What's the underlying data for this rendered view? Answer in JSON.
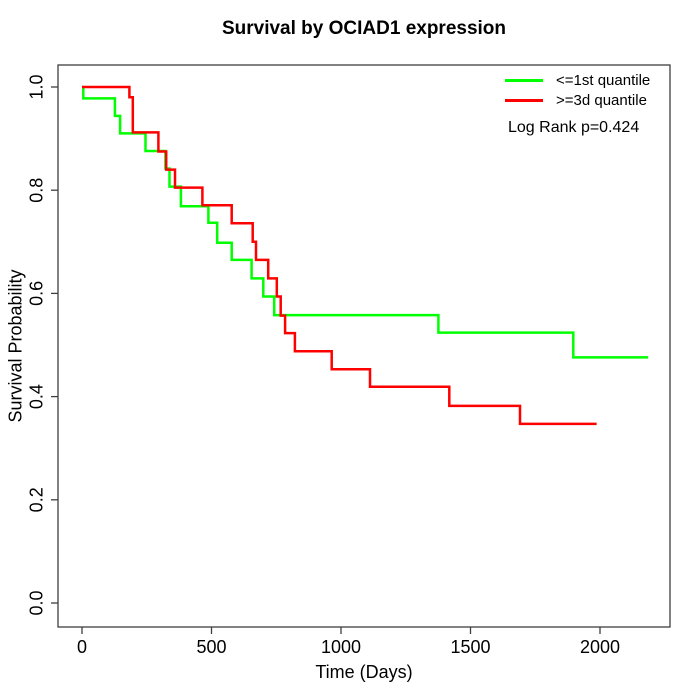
{
  "chart_data": {
    "type": "line",
    "subtype": "kaplan-meier-step",
    "title": "Survival by OCIAD1 expression",
    "xlabel": "Time (Days)",
    "ylabel": "Survival Probability",
    "grid": false,
    "xlim": [
      -91,
      2273
    ],
    "ylim": [
      -0.046,
      1.043
    ],
    "x_ticks": [
      [
        "0",
        0
      ],
      [
        "500",
        500
      ],
      [
        "1000",
        1000
      ],
      [
        "1500",
        1500
      ],
      [
        "2000",
        2000
      ]
    ],
    "y_ticks": [
      [
        "0.0",
        0.0
      ],
      [
        "0.2",
        0.2
      ],
      [
        "0.4",
        0.4
      ],
      [
        "0.6",
        0.6
      ],
      [
        "0.8",
        0.8
      ],
      [
        "1.0",
        1.0
      ]
    ],
    "legend": {
      "position": "top-right",
      "entries": [
        {
          "label": "<=1st quantile",
          "color": "#00ff00"
        },
        {
          "label": ">=3d quantile",
          "color": "#ff0000"
        }
      ]
    },
    "annotation": "Log Rank p=0.424",
    "series": [
      {
        "name": "<=1st quantile",
        "color": "#00ff00",
        "end_time": 2186,
        "steps": [
          [
            0,
            1.0
          ],
          [
            5,
            0.978
          ],
          [
            127,
            0.944
          ],
          [
            147,
            0.91
          ],
          [
            245,
            0.876
          ],
          [
            322,
            0.842
          ],
          [
            338,
            0.807
          ],
          [
            382,
            0.769
          ],
          [
            488,
            0.737
          ],
          [
            522,
            0.698
          ],
          [
            578,
            0.665
          ],
          [
            655,
            0.629
          ],
          [
            700,
            0.594
          ],
          [
            742,
            0.558
          ],
          [
            1376,
            0.524
          ],
          [
            1897,
            0.476
          ]
        ]
      },
      {
        "name": ">=3d quantile",
        "color": "#ff0000",
        "end_time": 1987,
        "steps": [
          [
            0,
            1.0
          ],
          [
            183,
            0.98
          ],
          [
            196,
            0.912
          ],
          [
            295,
            0.875
          ],
          [
            325,
            0.84
          ],
          [
            359,
            0.805
          ],
          [
            465,
            0.771
          ],
          [
            578,
            0.736
          ],
          [
            659,
            0.7
          ],
          [
            672,
            0.665
          ],
          [
            719,
            0.629
          ],
          [
            752,
            0.594
          ],
          [
            767,
            0.557
          ],
          [
            784,
            0.523
          ],
          [
            822,
            0.488
          ],
          [
            964,
            0.453
          ],
          [
            1112,
            0.419
          ],
          [
            1418,
            0.382
          ],
          [
            1691,
            0.347
          ]
        ]
      }
    ]
  }
}
